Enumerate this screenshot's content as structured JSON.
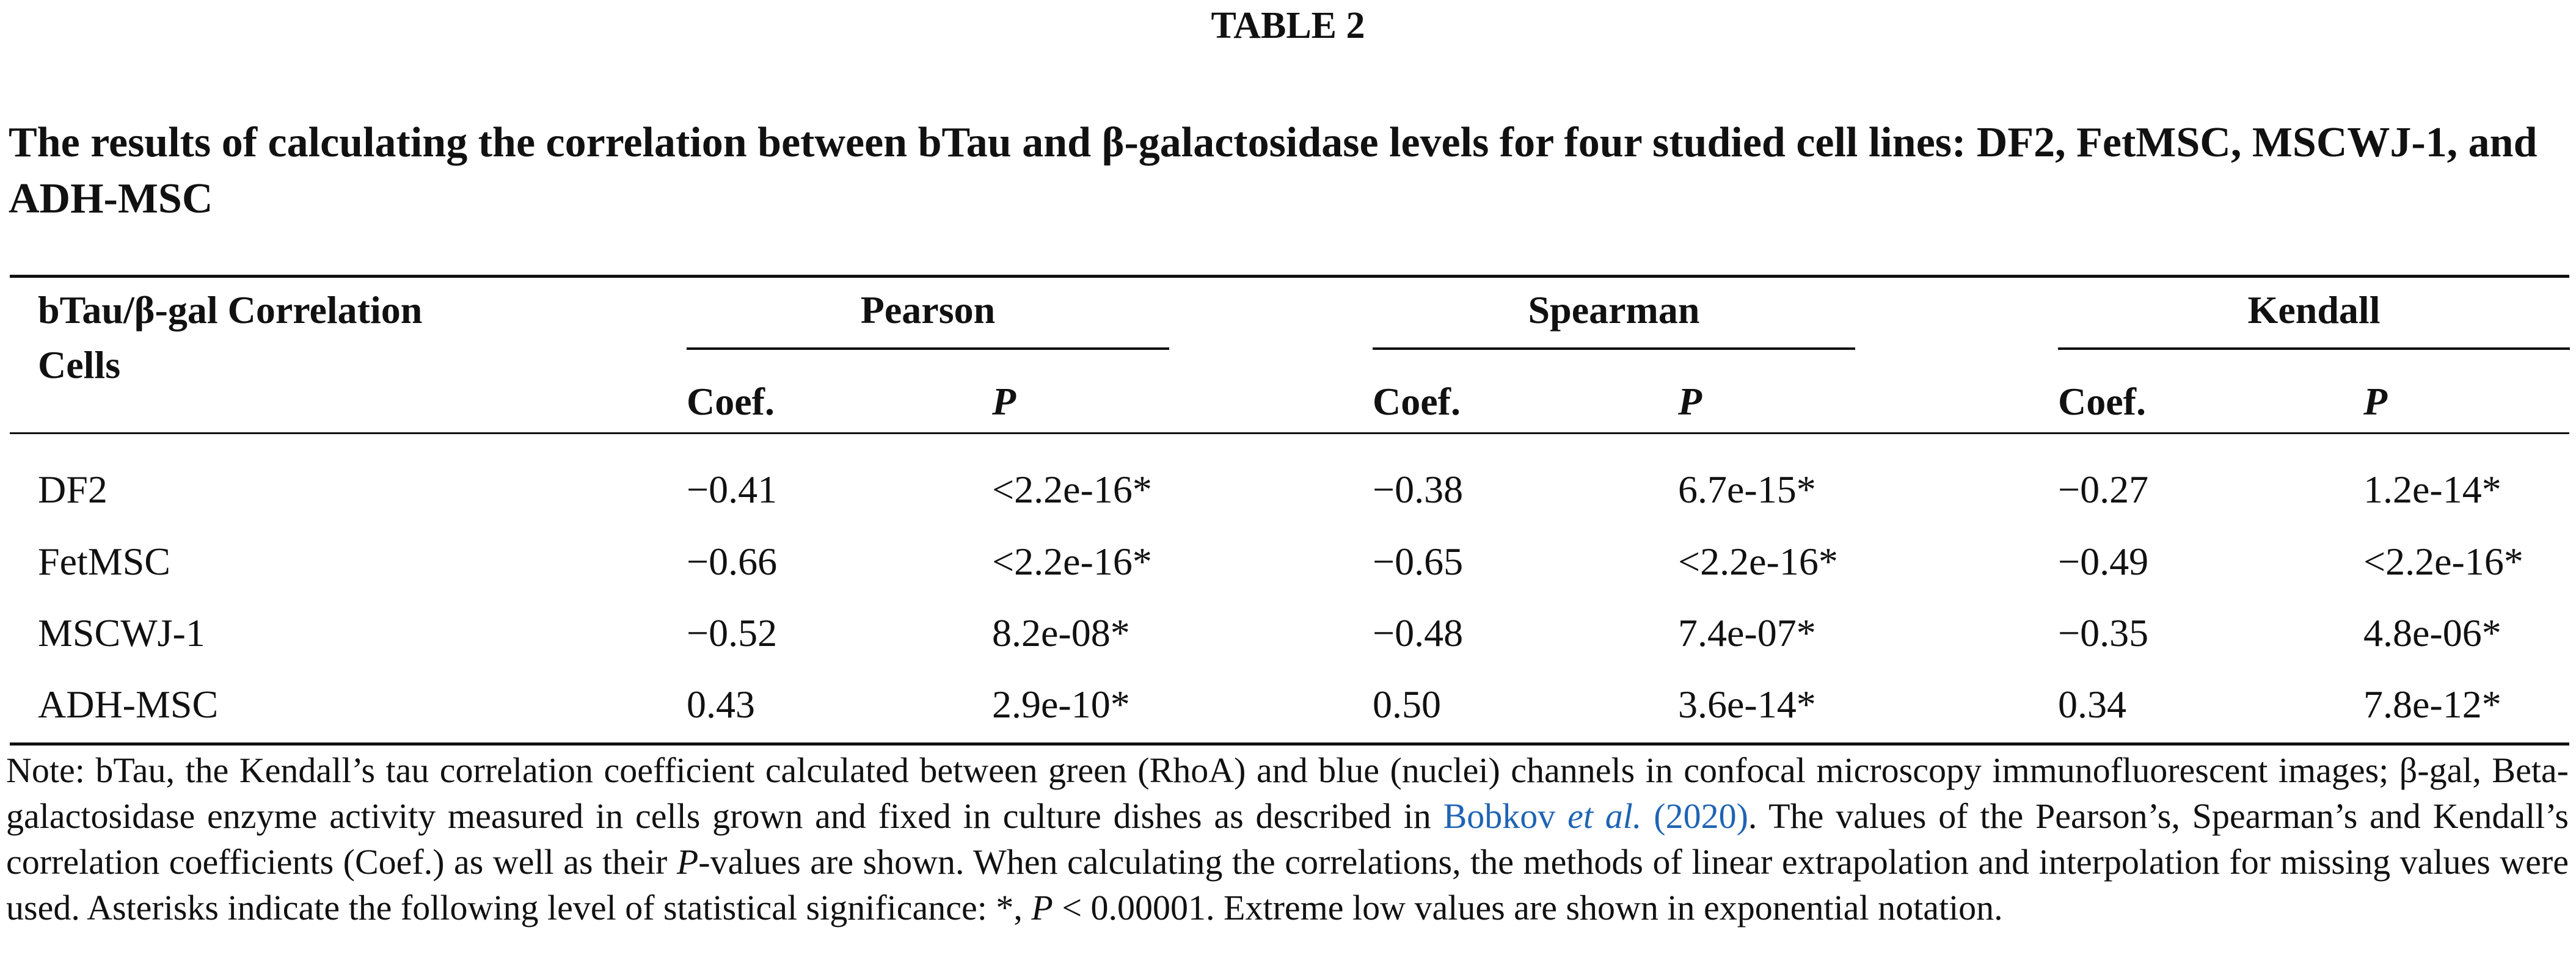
{
  "table_label": "TABLE 2",
  "caption": "The results of calculating the correlation between bTau and β-galactosidase levels for four studied cell lines: DF2, FetMSC, MSCWJ-1, and ADH-MSC",
  "header": {
    "row_label_line1": "bTau/β-gal Correlation",
    "row_label_line2": "Cells",
    "groups": [
      "Pearson",
      "Spearman",
      "Kendall"
    ],
    "sub_coef": "Coef.",
    "sub_p": "P"
  },
  "rows": [
    {
      "cells": "DF2",
      "pearson_coef": "−0.41",
      "pearson_p": "<2.2e-16*",
      "spearman_coef": "−0.38",
      "spearman_p": "6.7e-15*",
      "kendall_coef": "−0.27",
      "kendall_p": "1.2e-14*"
    },
    {
      "cells": "FetMSC",
      "pearson_coef": "−0.66",
      "pearson_p": "<2.2e-16*",
      "spearman_coef": "−0.65",
      "spearman_p": "<2.2e-16*",
      "kendall_coef": "−0.49",
      "kendall_p": "<2.2e-16*"
    },
    {
      "cells": "MSCWJ-1",
      "pearson_coef": "−0.52",
      "pearson_p": "8.2e-08*",
      "spearman_coef": "−0.48",
      "spearman_p": "7.4e-07*",
      "kendall_coef": "−0.35",
      "kendall_p": "4.8e-06*"
    },
    {
      "cells": "ADH-MSC",
      "pearson_coef": "0.43",
      "pearson_p": "2.9e-10*",
      "spearman_coef": "0.50",
      "spearman_p": "3.6e-14*",
      "kendall_coef": "0.34",
      "kendall_p": "7.8e-12*"
    }
  ],
  "note": {
    "part1": "Note: bTau, the Kendall’s tau correlation coefficient calculated between green (RhoA) and blue (nuclei) channels in confocal microscopy immunofluorescent images; β-gal, Beta-galactosidase enzyme activity measured in cells grown and fixed in culture dishes as described in ",
    "ref_author": "Bobkov ",
    "ref_etal": "et al.",
    "ref_year": " (2020)",
    "part2": ". The values of the Pearson’s, Spearman’s and Kendall’s correlation coefficients (Coef.) as well as their ",
    "p_italic": "P",
    "part3": "-values are shown. When calculating the correlations, the methods of linear extrapolation and interpolation for missing values were used. Asterisks indicate the following level of statistical significance: *, ",
    "p_italic2": "P",
    "part4": " < 0.00001. Extreme low values are shown in exponential notation."
  }
}
